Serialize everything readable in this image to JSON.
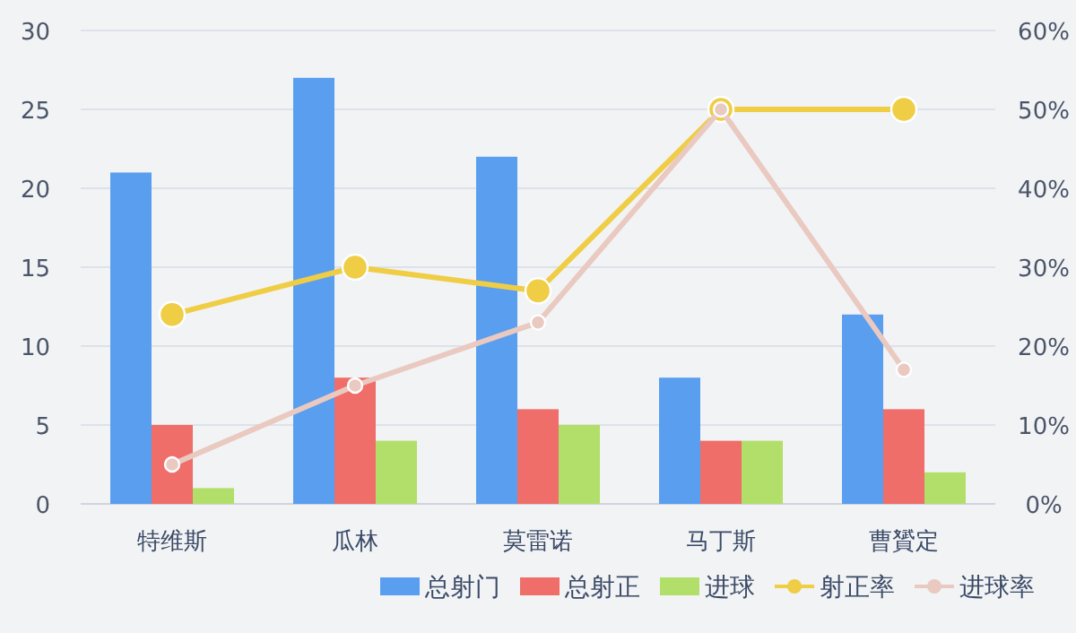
{
  "chart_data": {
    "type": "bar",
    "categories": [
      "特维斯",
      "瓜林",
      "莫雷诺",
      "马丁斯",
      "曹贇定"
    ],
    "series": [
      {
        "name": "总射门",
        "color": "#5a9ef0",
        "values": [
          21,
          27,
          22,
          8,
          12
        ]
      },
      {
        "name": "总射正",
        "color": "#ef6e6a",
        "values": [
          5,
          8,
          6,
          4,
          6
        ]
      },
      {
        "name": "进球",
        "color": "#b2df6a",
        "values": [
          1,
          4,
          5,
          4,
          2
        ]
      },
      {
        "name": "射正率",
        "type": "line",
        "axis": "y2",
        "color": "#efcd45",
        "values": [
          24,
          30,
          27,
          50,
          50
        ]
      },
      {
        "name": "进球率",
        "type": "line",
        "axis": "y2",
        "color": "#e9c9c0",
        "values": [
          5,
          15,
          23,
          50,
          17
        ]
      }
    ],
    "ylim": [
      0,
      30
    ],
    "yticks": [
      0,
      5,
      10,
      15,
      20,
      25,
      30
    ],
    "y2lim": [
      0,
      60
    ],
    "y2ticks": [
      {
        "value": 0,
        "label": "0%"
      },
      {
        "value": 10,
        "label": "10%"
      },
      {
        "value": 20,
        "label": "20%"
      },
      {
        "value": 30,
        "label": "30%"
      },
      {
        "value": 40,
        "label": "40%"
      },
      {
        "value": 50,
        "label": "50%"
      },
      {
        "value": 60,
        "label": "60%"
      }
    ],
    "grid": "y",
    "legend": "bottom right",
    "marker": "circle"
  }
}
